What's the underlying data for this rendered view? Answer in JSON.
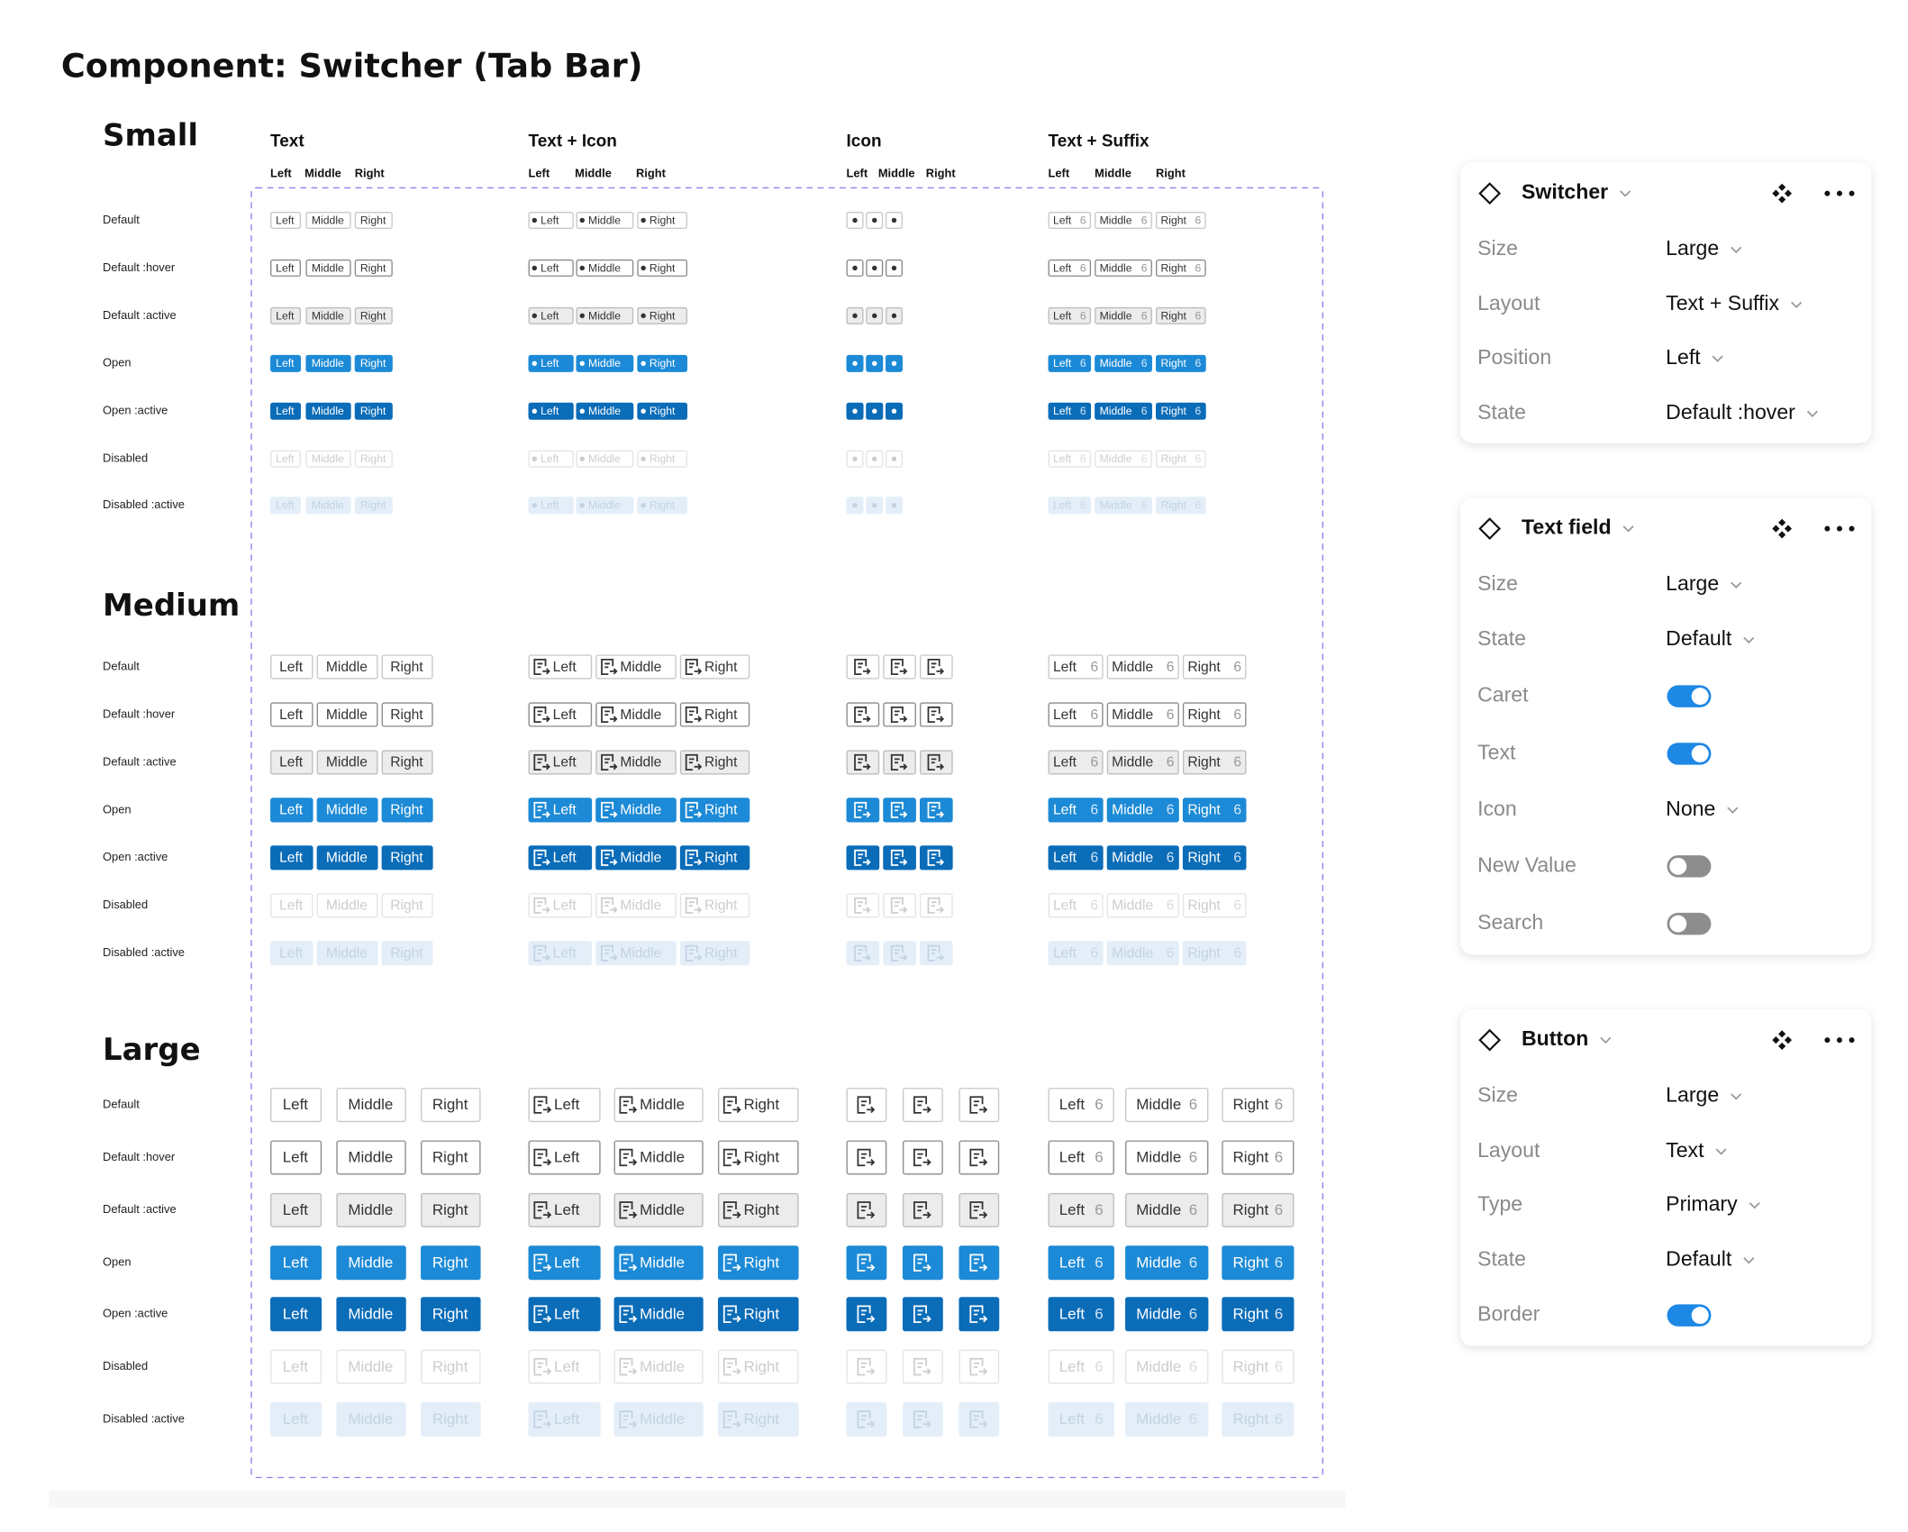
{
  "title": "Component: Switcher (Tab Bar)",
  "columns": [
    {
      "label": "Text",
      "positions": [
        "Left",
        "Middle",
        "Right"
      ]
    },
    {
      "label": "Text + Icon",
      "positions": [
        "Left",
        "Middle",
        "Right"
      ]
    },
    {
      "label": "Icon",
      "positions": [
        "Left",
        "Middle",
        "Right"
      ]
    },
    {
      "label": "Text + Suffix",
      "positions": [
        "Left",
        "Middle",
        "Right"
      ]
    }
  ],
  "button_labels": [
    "Left",
    "Middle",
    "Right"
  ],
  "suffix": "6",
  "sizes": [
    "Small",
    "Medium",
    "Large"
  ],
  "states": [
    "Default",
    "Default :hover",
    "Default :active",
    "Open",
    "Open :active",
    "Disabled",
    "Disabled :active"
  ],
  "panels": [
    {
      "title": "Switcher",
      "rows": [
        {
          "label": "Size",
          "value": "Large"
        },
        {
          "label": "Layout",
          "value": "Text + Suffix"
        },
        {
          "label": "Position",
          "value": "Left"
        },
        {
          "label": "State",
          "value": "Default :hover"
        }
      ]
    },
    {
      "title": "Text field",
      "rows": [
        {
          "label": "Size",
          "value": "Large"
        },
        {
          "label": "State",
          "value": "Default"
        },
        {
          "label": "Caret",
          "toggle": true
        },
        {
          "label": "Text",
          "toggle": true
        },
        {
          "label": "Icon",
          "value": "None"
        },
        {
          "label": "New Value",
          "toggle": false
        },
        {
          "label": "Search",
          "toggle": false
        }
      ]
    },
    {
      "title": "Button",
      "rows": [
        {
          "label": "Size",
          "value": "Large"
        },
        {
          "label": "Layout",
          "value": "Text"
        },
        {
          "label": "Type",
          "value": "Primary"
        },
        {
          "label": "State",
          "value": "Default"
        },
        {
          "label": "Border",
          "toggle": true
        }
      ]
    }
  ]
}
